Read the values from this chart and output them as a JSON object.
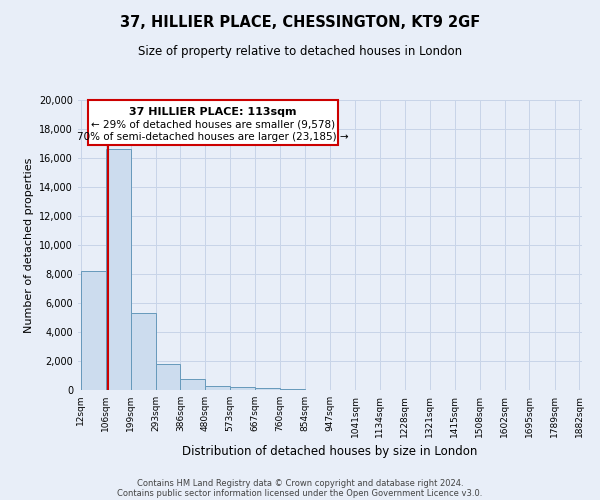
{
  "title": "37, HILLIER PLACE, CHESSINGTON, KT9 2GF",
  "subtitle": "Size of property relative to detached houses in London",
  "xlabel": "Distribution of detached houses by size in London",
  "ylabel": "Number of detached properties",
  "bin_edges": [
    12,
    106,
    199,
    293,
    386,
    480,
    573,
    667,
    760,
    854,
    947,
    1041,
    1134,
    1228,
    1321,
    1415,
    1508,
    1602,
    1695,
    1789,
    1882
  ],
  "bin_labels": [
    "12sqm",
    "106sqm",
    "199sqm",
    "293sqm",
    "386sqm",
    "480sqm",
    "573sqm",
    "667sqm",
    "760sqm",
    "854sqm",
    "947sqm",
    "1041sqm",
    "1134sqm",
    "1228sqm",
    "1321sqm",
    "1415sqm",
    "1508sqm",
    "1602sqm",
    "1695sqm",
    "1789sqm",
    "1882sqm"
  ],
  "bar_heights": [
    8200,
    16600,
    5300,
    1800,
    750,
    280,
    180,
    130,
    80,
    0,
    0,
    0,
    0,
    0,
    0,
    0,
    0,
    0,
    0,
    0
  ],
  "bar_color": "#ccdcee",
  "bar_edge_color": "#6699bb",
  "grid_color": "#c8d4e8",
  "background_color": "#e8eef8",
  "property_size": 113,
  "property_label": "37 HILLIER PLACE: 113sqm",
  "annotation_line1": "← 29% of detached houses are smaller (9,578)",
  "annotation_line2": "70% of semi-detached houses are larger (23,185) →",
  "annotation_box_color": "#ffffff",
  "annotation_border_color": "#cc0000",
  "vline_color": "#cc0000",
  "ylim": [
    0,
    20000
  ],
  "yticks": [
    0,
    2000,
    4000,
    6000,
    8000,
    10000,
    12000,
    14000,
    16000,
    18000,
    20000
  ],
  "footer_line1": "Contains HM Land Registry data © Crown copyright and database right 2024.",
  "footer_line2": "Contains public sector information licensed under the Open Government Licence v3.0."
}
